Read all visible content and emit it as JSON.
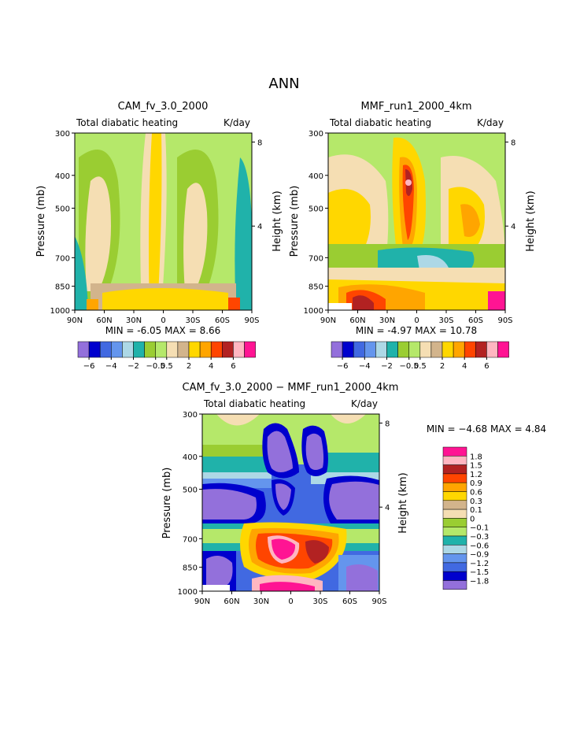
{
  "figure_title": "ANN",
  "chart_data": [
    {
      "type": "heatmap",
      "title": "CAM_fv_3.0_2000",
      "subtitle_left": "Total diabatic heating",
      "subtitle_right": "K/day",
      "ylabel": "Pressure (mb)",
      "ylabel_right": "Height (km)",
      "x_ticks": [
        "90N",
        "60N",
        "30N",
        "0",
        "30S",
        "60S",
        "90S"
      ],
      "x_values": [
        90,
        60,
        30,
        0,
        -30,
        -60,
        -90
      ],
      "y_ticks": [
        "300",
        "400",
        "500",
        "700",
        "850",
        "1000"
      ],
      "y_values": [
        300,
        400,
        500,
        700,
        850,
        1000
      ],
      "y_right_ticks": [
        "8",
        "4"
      ],
      "ylim": [
        1000,
        300
      ],
      "stats": "MIN = -6.05 MAX = 8.66",
      "colorbar_levels": [
        -6,
        -5,
        -4,
        -3,
        -2,
        -1,
        -0.5,
        0,
        0.5,
        1,
        2,
        3,
        4,
        5,
        6
      ],
      "colorbar_labels": [
        "−6",
        "−4",
        "−2",
        "−0.5",
        "0.5",
        "2",
        "4",
        "6"
      ]
    },
    {
      "type": "heatmap",
      "title": "MMF_run1_2000_4km",
      "subtitle_left": "Total diabatic heating",
      "subtitle_right": "K/day",
      "ylabel": "Pressure (mb)",
      "ylabel_right": "Height (km)",
      "x_ticks": [
        "90N",
        "60N",
        "30N",
        "0",
        "30S",
        "60S",
        "90S"
      ],
      "x_values": [
        90,
        60,
        30,
        0,
        -30,
        -60,
        -90
      ],
      "y_ticks": [
        "300",
        "400",
        "500",
        "700",
        "850",
        "1000"
      ],
      "y_values": [
        300,
        400,
        500,
        700,
        850,
        1000
      ],
      "y_right_ticks": [
        "8",
        "4"
      ],
      "ylim": [
        1000,
        300
      ],
      "stats": "MIN = -4.97 MAX = 10.78",
      "colorbar_levels": [
        -6,
        -5,
        -4,
        -3,
        -2,
        -1,
        -0.5,
        0,
        0.5,
        1,
        2,
        3,
        4,
        5,
        6
      ],
      "colorbar_labels": [
        "−6",
        "−4",
        "−2",
        "−0.5",
        "0.5",
        "2",
        "4",
        "6"
      ]
    },
    {
      "type": "heatmap",
      "title": "CAM_fv_3.0_2000 − MMF_run1_2000_4km",
      "subtitle_left": "Total diabatic heating",
      "subtitle_right": "K/day",
      "ylabel": "Pressure (mb)",
      "ylabel_right": "Height (km)",
      "x_ticks": [
        "90N",
        "60N",
        "30N",
        "0",
        "30S",
        "60S",
        "90S"
      ],
      "x_values": [
        90,
        60,
        30,
        0,
        -30,
        -60,
        -90
      ],
      "y_ticks": [
        "300",
        "400",
        "500",
        "700",
        "850",
        "1000"
      ],
      "y_values": [
        300,
        400,
        500,
        700,
        850,
        1000
      ],
      "y_right_ticks": [
        "8",
        "4"
      ],
      "ylim": [
        1000,
        300
      ],
      "stats": "MIN = −4.68 MAX = 4.84",
      "colorbar_levels": [
        1.8,
        1.5,
        1.2,
        0.9,
        0.6,
        0.3,
        0.1,
        0,
        -0.1,
        -0.3,
        -0.6,
        -0.9,
        -1.2,
        -1.5,
        -1.8
      ],
      "colorbar_labels": [
        "1.8",
        "1.5",
        "1.2",
        "0.9",
        "0.6",
        "0.3",
        "0.1",
        "0",
        "−0.1",
        "−0.3",
        "−0.6",
        "−0.9",
        "−1.2",
        "−1.5",
        "−1.8"
      ]
    }
  ],
  "palettes": {
    "abs": [
      "#9370db",
      "#0000cd",
      "#4169e1",
      "#6495ed",
      "#add8e6",
      "#20b2aa",
      "#9acd32",
      "#b5e86a",
      "#f5deb3",
      "#d2b48c",
      "#ffd700",
      "#ffa500",
      "#ff4500",
      "#b22222",
      "#ffb6c1",
      "#ff1493"
    ],
    "diff": [
      "#ff1493",
      "#ffb6c1",
      "#b22222",
      "#ff4500",
      "#ffa500",
      "#ffd700",
      "#d2b48c",
      "#f5deb3",
      "#9acd32",
      "#b5e86a",
      "#20b2aa",
      "#add8e6",
      "#6495ed",
      "#4169e1",
      "#0000cd",
      "#9370db"
    ]
  }
}
